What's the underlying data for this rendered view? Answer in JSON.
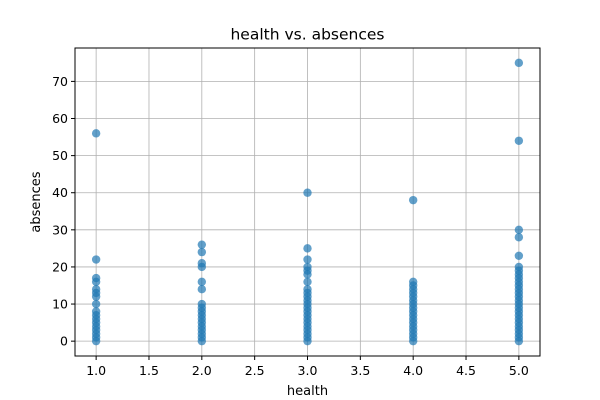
{
  "chart_data": {
    "type": "scatter",
    "title": "health vs. absences",
    "xlabel": "health",
    "ylabel": "absences",
    "xlim": [
      0.8,
      5.2
    ],
    "ylim": [
      -4,
      79
    ],
    "xticks": [
      1.0,
      1.5,
      2.0,
      2.5,
      3.0,
      3.5,
      4.0,
      4.5,
      5.0
    ],
    "xtick_labels": [
      "1.0",
      "1.5",
      "2.0",
      "2.5",
      "3.0",
      "3.5",
      "4.0",
      "4.5",
      "5.0"
    ],
    "yticks": [
      0,
      10,
      20,
      30,
      40,
      50,
      60,
      70
    ],
    "ytick_labels": [
      "0",
      "10",
      "20",
      "30",
      "40",
      "50",
      "60",
      "70"
    ],
    "grid": true,
    "marker_color": "#1f77b4",
    "marker_alpha": 0.7,
    "points": [
      {
        "x": 1,
        "y": 0
      },
      {
        "x": 1,
        "y": 1
      },
      {
        "x": 1,
        "y": 2
      },
      {
        "x": 1,
        "y": 3
      },
      {
        "x": 1,
        "y": 4
      },
      {
        "x": 1,
        "y": 5
      },
      {
        "x": 1,
        "y": 6
      },
      {
        "x": 1,
        "y": 7
      },
      {
        "x": 1,
        "y": 8
      },
      {
        "x": 1,
        "y": 10
      },
      {
        "x": 1,
        "y": 12
      },
      {
        "x": 1,
        "y": 13
      },
      {
        "x": 1,
        "y": 14
      },
      {
        "x": 1,
        "y": 16
      },
      {
        "x": 1,
        "y": 17
      },
      {
        "x": 1,
        "y": 22
      },
      {
        "x": 1,
        "y": 56
      },
      {
        "x": 2,
        "y": 0
      },
      {
        "x": 2,
        "y": 1
      },
      {
        "x": 2,
        "y": 2
      },
      {
        "x": 2,
        "y": 3
      },
      {
        "x": 2,
        "y": 4
      },
      {
        "x": 2,
        "y": 5
      },
      {
        "x": 2,
        "y": 6
      },
      {
        "x": 2,
        "y": 7
      },
      {
        "x": 2,
        "y": 8
      },
      {
        "x": 2,
        "y": 9
      },
      {
        "x": 2,
        "y": 10
      },
      {
        "x": 2,
        "y": 14
      },
      {
        "x": 2,
        "y": 16
      },
      {
        "x": 2,
        "y": 20
      },
      {
        "x": 2,
        "y": 21
      },
      {
        "x": 2,
        "y": 24
      },
      {
        "x": 2,
        "y": 26
      },
      {
        "x": 3,
        "y": 0
      },
      {
        "x": 3,
        "y": 1
      },
      {
        "x": 3,
        "y": 2
      },
      {
        "x": 3,
        "y": 3
      },
      {
        "x": 3,
        "y": 4
      },
      {
        "x": 3,
        "y": 5
      },
      {
        "x": 3,
        "y": 6
      },
      {
        "x": 3,
        "y": 7
      },
      {
        "x": 3,
        "y": 8
      },
      {
        "x": 3,
        "y": 9
      },
      {
        "x": 3,
        "y": 10
      },
      {
        "x": 3,
        "y": 11
      },
      {
        "x": 3,
        "y": 12
      },
      {
        "x": 3,
        "y": 13
      },
      {
        "x": 3,
        "y": 14
      },
      {
        "x": 3,
        "y": 16
      },
      {
        "x": 3,
        "y": 18
      },
      {
        "x": 3,
        "y": 19
      },
      {
        "x": 3,
        "y": 20
      },
      {
        "x": 3,
        "y": 22
      },
      {
        "x": 3,
        "y": 25
      },
      {
        "x": 3,
        "y": 40
      },
      {
        "x": 4,
        "y": 0
      },
      {
        "x": 4,
        "y": 1
      },
      {
        "x": 4,
        "y": 2
      },
      {
        "x": 4,
        "y": 3
      },
      {
        "x": 4,
        "y": 4
      },
      {
        "x": 4,
        "y": 5
      },
      {
        "x": 4,
        "y": 6
      },
      {
        "x": 4,
        "y": 7
      },
      {
        "x": 4,
        "y": 8
      },
      {
        "x": 4,
        "y": 9
      },
      {
        "x": 4,
        "y": 10
      },
      {
        "x": 4,
        "y": 11
      },
      {
        "x": 4,
        "y": 12
      },
      {
        "x": 4,
        "y": 13
      },
      {
        "x": 4,
        "y": 14
      },
      {
        "x": 4,
        "y": 15
      },
      {
        "x": 4,
        "y": 16
      },
      {
        "x": 4,
        "y": 38
      },
      {
        "x": 5,
        "y": 0
      },
      {
        "x": 5,
        "y": 1
      },
      {
        "x": 5,
        "y": 2
      },
      {
        "x": 5,
        "y": 3
      },
      {
        "x": 5,
        "y": 4
      },
      {
        "x": 5,
        "y": 5
      },
      {
        "x": 5,
        "y": 6
      },
      {
        "x": 5,
        "y": 7
      },
      {
        "x": 5,
        "y": 8
      },
      {
        "x": 5,
        "y": 9
      },
      {
        "x": 5,
        "y": 10
      },
      {
        "x": 5,
        "y": 11
      },
      {
        "x": 5,
        "y": 12
      },
      {
        "x": 5,
        "y": 13
      },
      {
        "x": 5,
        "y": 14
      },
      {
        "x": 5,
        "y": 15
      },
      {
        "x": 5,
        "y": 16
      },
      {
        "x": 5,
        "y": 17
      },
      {
        "x": 5,
        "y": 18
      },
      {
        "x": 5,
        "y": 19
      },
      {
        "x": 5,
        "y": 20
      },
      {
        "x": 5,
        "y": 23
      },
      {
        "x": 5,
        "y": 28
      },
      {
        "x": 5,
        "y": 30
      },
      {
        "x": 5,
        "y": 54
      },
      {
        "x": 5,
        "y": 75
      }
    ]
  }
}
